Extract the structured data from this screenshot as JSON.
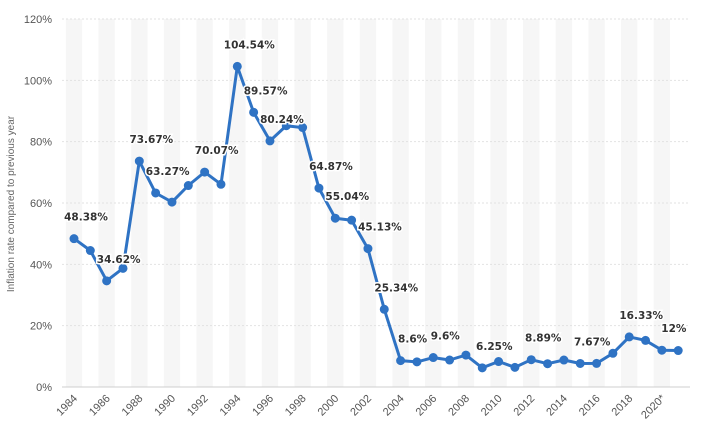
{
  "chart_data": {
    "type": "line",
    "title": "",
    "xlabel": "",
    "ylabel": "Inflation rate compared to previous year",
    "ylim": [
      0,
      120
    ],
    "y_ticks": [
      0,
      20,
      40,
      60,
      80,
      100,
      120
    ],
    "y_tick_labels": [
      "0%",
      "20%",
      "40%",
      "60%",
      "80%",
      "100%",
      "120%"
    ],
    "x_tick_labels": [
      "1984",
      "1986",
      "1988",
      "1990",
      "1992",
      "1994",
      "1996",
      "1998",
      "2000",
      "2002",
      "2004",
      "2006",
      "2008",
      "2010",
      "2012",
      "2014",
      "2016",
      "2018",
      "2020*"
    ],
    "grid": true,
    "line_color": "#2f73c4",
    "series": [
      {
        "name": "Inflation rate",
        "x": [
          "1984",
          "1985",
          "1986",
          "1987",
          "1988",
          "1989",
          "1990",
          "1991",
          "1992",
          "1993",
          "1994",
          "1995",
          "1996",
          "1997",
          "1998",
          "1999",
          "2000",
          "2001",
          "2002",
          "2003",
          "2004",
          "2005",
          "2006",
          "2007",
          "2008",
          "2009",
          "2010",
          "2011",
          "2012",
          "2013",
          "2014",
          "2015",
          "2016",
          "2017",
          "2018",
          "2019",
          "2020*",
          "2021*"
        ],
        "values": [
          48.38,
          44.5,
          34.62,
          38.7,
          73.67,
          63.27,
          60.3,
          65.7,
          70.07,
          66.1,
          104.54,
          89.57,
          80.24,
          85.2,
          84.6,
          64.87,
          55.04,
          54.4,
          45.13,
          25.34,
          8.6,
          8.2,
          9.6,
          8.8,
          10.4,
          6.25,
          8.3,
          6.4,
          8.89,
          7.6,
          8.8,
          7.67,
          7.7,
          11.0,
          16.33,
          15.2,
          12.0,
          11.9
        ]
      }
    ],
    "annotations": [
      {
        "x": "1984",
        "text": "48.38%"
      },
      {
        "x": "1986",
        "text": "34.62%"
      },
      {
        "x": "1988",
        "text": "73.67%"
      },
      {
        "x": "1989",
        "text": "63.27%"
      },
      {
        "x": "1992",
        "text": "70.07%"
      },
      {
        "x": "1994",
        "text": "104.54%"
      },
      {
        "x": "1995",
        "text": "89.57%"
      },
      {
        "x": "1996",
        "text": "80.24%"
      },
      {
        "x": "1999",
        "text": "64.87%"
      },
      {
        "x": "2000",
        "text": "55.04%"
      },
      {
        "x": "2002",
        "text": "45.13%"
      },
      {
        "x": "2003",
        "text": "25.34%"
      },
      {
        "x": "2004",
        "text": "8.6%"
      },
      {
        "x": "2006",
        "text": "9.6%"
      },
      {
        "x": "2009",
        "text": "6.25%"
      },
      {
        "x": "2012",
        "text": "8.89%"
      },
      {
        "x": "2015",
        "text": "7.67%"
      },
      {
        "x": "2018",
        "text": "16.33%"
      },
      {
        "x": "2020*",
        "text": "12%"
      }
    ]
  }
}
